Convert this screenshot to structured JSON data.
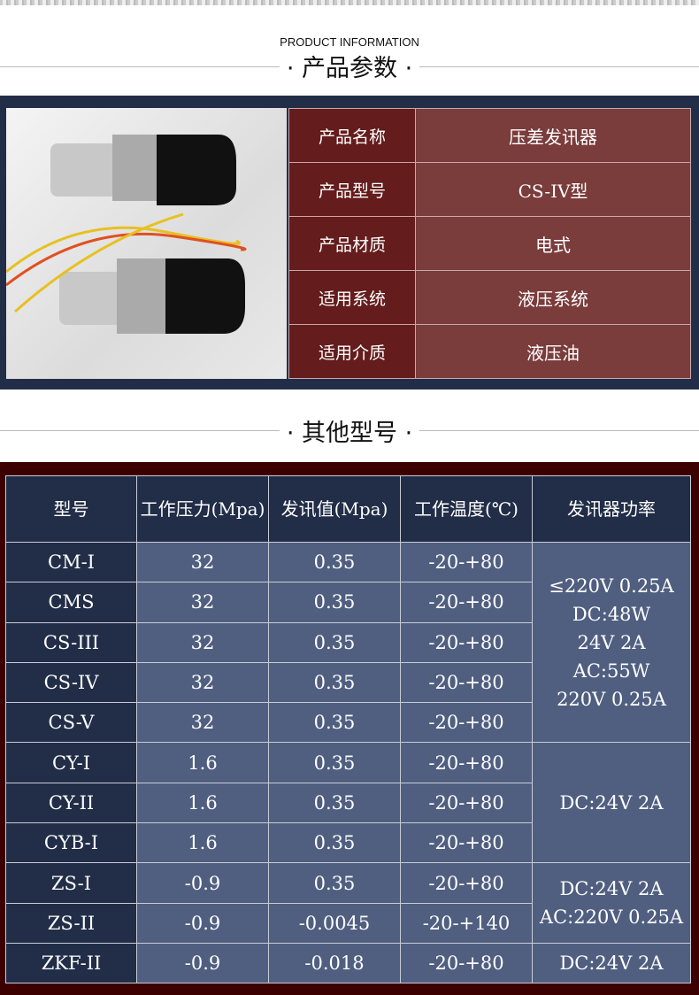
{
  "section1": {
    "subtitle": "PRODUCT INFORMATION",
    "title": "· 产品参数 ·"
  },
  "info": [
    {
      "k": "产品名称",
      "v": "压差发讯器"
    },
    {
      "k": "产品型号",
      "v": "CS-IV型"
    },
    {
      "k": "产品材质",
      "v": "电式"
    },
    {
      "k": "适用系统",
      "v": "液压系统"
    },
    {
      "k": "适用介质",
      "v": "液压油"
    }
  ],
  "section2": {
    "title": "· 其他型号 ·"
  },
  "spec": {
    "headers": [
      "型号",
      "工作压力(Mpa)",
      "发讯值(Mpa)",
      "工作温度(℃)",
      "发讯器功率"
    ],
    "rows": [
      [
        "CM-I",
        "32",
        "0.35",
        "-20-+80"
      ],
      [
        "CMS",
        "32",
        "0.35",
        "-20-+80"
      ],
      [
        "CS-III",
        "32",
        "0.35",
        "-20-+80"
      ],
      [
        "CS-IV",
        "32",
        "0.35",
        "-20-+80"
      ],
      [
        "CS-V",
        "32",
        "0.35",
        "-20-+80"
      ],
      [
        "CY-I",
        "1.6",
        "0.35",
        "-20-+80"
      ],
      [
        "CY-II",
        "1.6",
        "0.35",
        "-20-+80"
      ],
      [
        "CYB-I",
        "1.6",
        "0.35",
        "-20-+80"
      ],
      [
        "ZS-I",
        "-0.9",
        "0.35",
        "-20-+80"
      ],
      [
        "ZS-II",
        "-0.9",
        "-0.0045",
        "-20-+140"
      ],
      [
        "ZKF-II",
        "-0.9",
        "-0.018",
        "-20-+80"
      ]
    ],
    "power": [
      [
        "≤220V 0.25A",
        "DC:48W",
        "24V 2A",
        "AC:55W",
        "220V 0.25A"
      ],
      [
        "DC:24V 2A"
      ],
      [
        "DC:24V 2A",
        "AC:220V 0.25A"
      ],
      [
        "DC:24V 2A"
      ]
    ]
  }
}
